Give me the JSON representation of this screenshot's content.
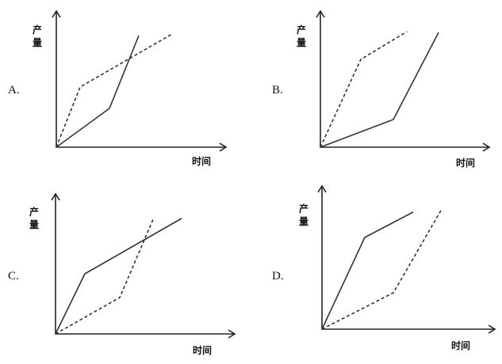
{
  "panels": [
    {
      "label": "A.",
      "y_label": "产量",
      "x_label": "时间"
    },
    {
      "label": "B.",
      "y_label": "产量",
      "x_label": "时间"
    },
    {
      "label": "C.",
      "y_label": "产量",
      "x_label": "时间"
    },
    {
      "label": "D.",
      "y_label": "产量",
      "x_label": "时间"
    }
  ]
}
